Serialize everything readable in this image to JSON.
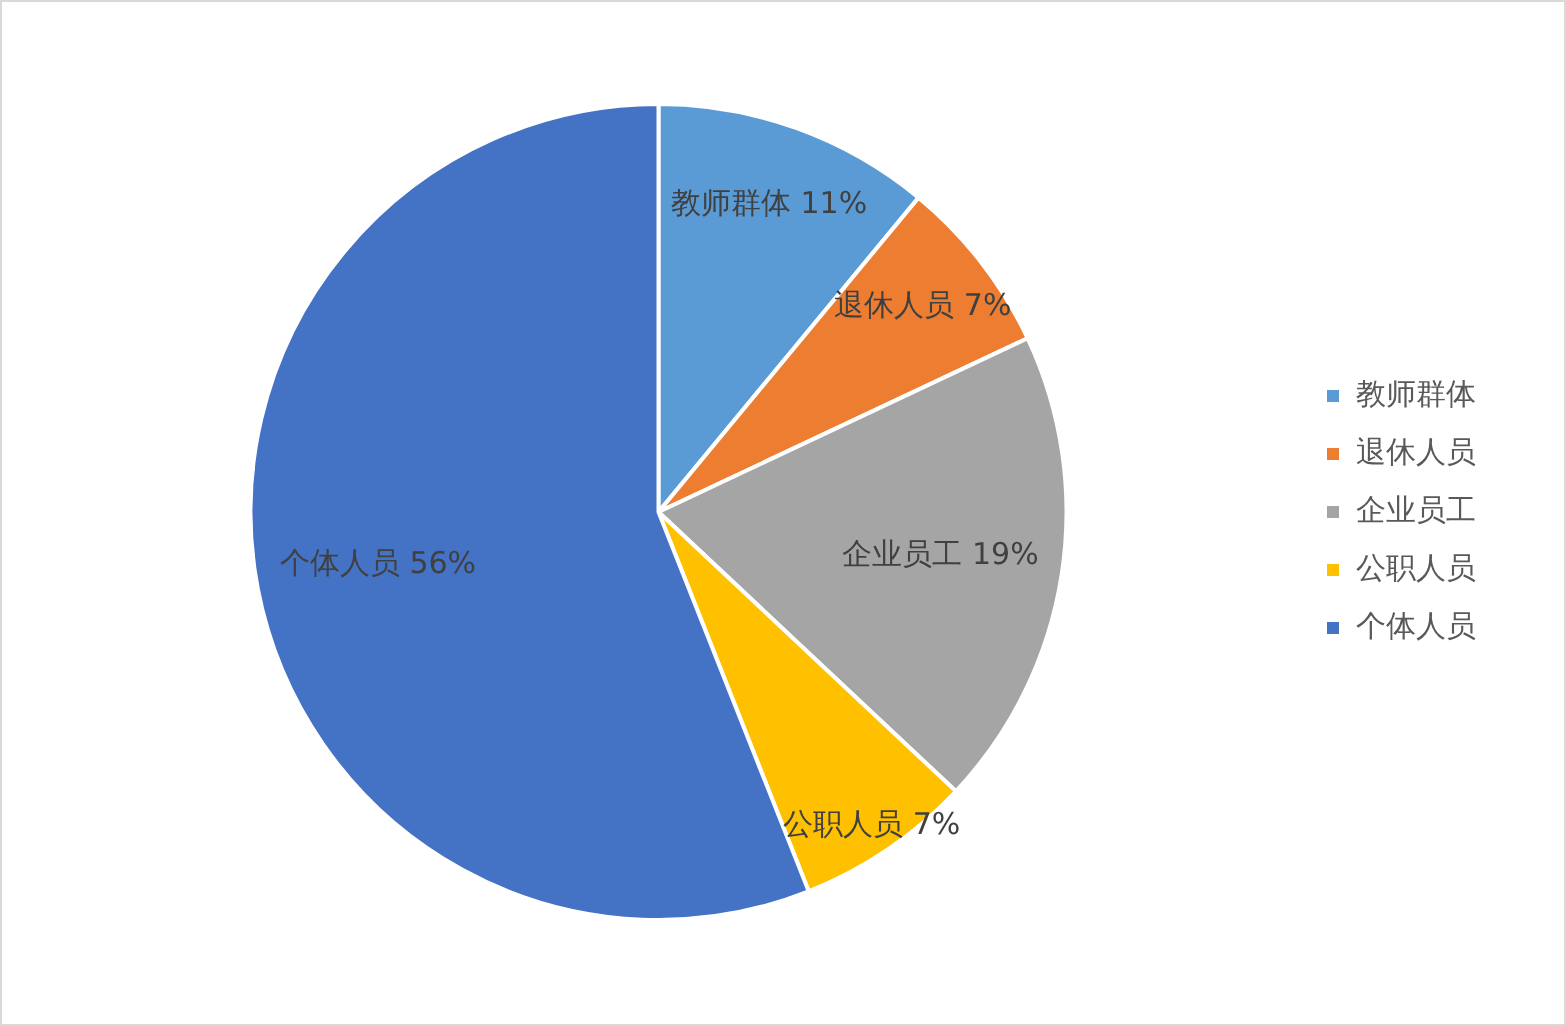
{
  "chart_data": {
    "type": "pie",
    "categories": [
      "教师群体",
      "退休人员",
      "企业员工",
      "公职人员",
      "个体人员"
    ],
    "values": [
      11,
      7,
      19,
      7,
      56
    ],
    "colors": [
      "#5b9bd5",
      "#ed7d31",
      "#a5a5a5",
      "#ffc000",
      "#4472c4"
    ],
    "value_labels": [
      "11%",
      "7%",
      "19%",
      "7%",
      "56%"
    ],
    "legend": "right"
  }
}
